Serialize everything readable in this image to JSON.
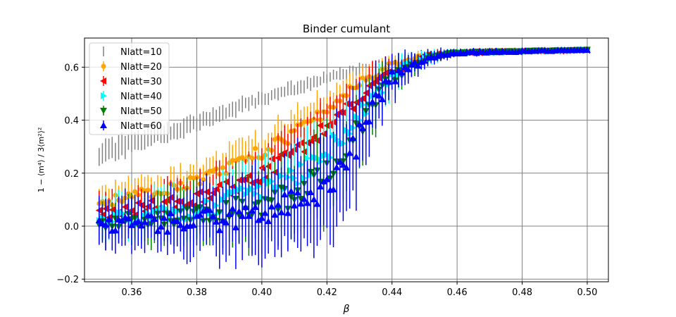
{
  "chart_data": {
    "type": "scatter",
    "title": "Binder cumulant",
    "xlabel": "β",
    "ylabel": "1 − ⟨m⁴⟩ / 3⟨m²⟩²",
    "xlim": [
      0.3455,
      0.5065
    ],
    "ylim": [
      -0.21,
      0.71
    ],
    "xticks": [
      0.36,
      0.38,
      0.4,
      0.42,
      0.44,
      0.46,
      0.48,
      0.5
    ],
    "xtick_labels": [
      "0.36",
      "0.38",
      "0.40",
      "0.42",
      "0.44",
      "0.46",
      "0.48",
      "0.50"
    ],
    "yticks": [
      -0.2,
      0.0,
      0.2,
      0.4,
      0.6
    ],
    "ytick_labels": [
      "−0.2",
      "0.0",
      "0.2",
      "0.4",
      "0.6"
    ],
    "grid": true,
    "legend_placement": "top-left",
    "beta_range": {
      "start": 0.35,
      "end": 0.5,
      "step": 0.001
    },
    "series": [
      {
        "name": "Nlatt=10",
        "color": "#808080",
        "marker": "none",
        "control_x": [
          0.35,
          0.36,
          0.38,
          0.4,
          0.42,
          0.43,
          0.44,
          0.45,
          0.46,
          0.5
        ],
        "control_y": [
          0.27,
          0.31,
          0.39,
          0.48,
          0.56,
          0.59,
          0.615,
          0.635,
          0.65,
          0.665
        ],
        "control_err": [
          0.04,
          0.035,
          0.03,
          0.025,
          0.02,
          0.018,
          0.015,
          0.01,
          0.006,
          0.004
        ]
      },
      {
        "name": "Nlatt=20",
        "color": "#ffa500",
        "marker": "circle",
        "control_x": [
          0.35,
          0.36,
          0.38,
          0.4,
          0.41,
          0.42,
          0.43,
          0.44,
          0.45,
          0.46,
          0.5
        ],
        "control_y": [
          0.09,
          0.11,
          0.17,
          0.28,
          0.35,
          0.44,
          0.54,
          0.61,
          0.645,
          0.655,
          0.665
        ],
        "control_err": [
          0.06,
          0.06,
          0.065,
          0.07,
          0.07,
          0.065,
          0.05,
          0.03,
          0.015,
          0.008,
          0.004
        ]
      },
      {
        "name": "Nlatt=30",
        "color": "#ff0000",
        "marker": "triangle-left",
        "control_x": [
          0.35,
          0.36,
          0.38,
          0.39,
          0.4,
          0.41,
          0.42,
          0.43,
          0.44,
          0.45,
          0.46,
          0.5
        ],
        "control_y": [
          0.05,
          0.06,
          0.1,
          0.14,
          0.2,
          0.28,
          0.37,
          0.49,
          0.58,
          0.64,
          0.655,
          0.665
        ],
        "control_err": [
          0.07,
          0.07,
          0.08,
          0.09,
          0.09,
          0.09,
          0.09,
          0.08,
          0.05,
          0.02,
          0.01,
          0.004
        ]
      },
      {
        "name": "Nlatt=40",
        "color": "#00ffff",
        "marker": "triangle-right",
        "control_x": [
          0.35,
          0.36,
          0.38,
          0.4,
          0.41,
          0.42,
          0.43,
          0.44,
          0.45,
          0.46,
          0.5
        ],
        "control_y": [
          0.02,
          0.03,
          0.06,
          0.13,
          0.19,
          0.28,
          0.42,
          0.57,
          0.635,
          0.655,
          0.665
        ],
        "control_err": [
          0.07,
          0.08,
          0.09,
          0.11,
          0.12,
          0.12,
          0.11,
          0.06,
          0.025,
          0.01,
          0.004
        ]
      },
      {
        "name": "Nlatt=50",
        "color": "#008000",
        "marker": "triangle-down",
        "control_x": [
          0.35,
          0.36,
          0.38,
          0.4,
          0.41,
          0.42,
          0.43,
          0.435,
          0.44,
          0.45,
          0.46,
          0.5
        ],
        "control_y": [
          0.01,
          0.02,
          0.04,
          0.08,
          0.12,
          0.21,
          0.37,
          0.49,
          0.56,
          0.63,
          0.655,
          0.665
        ],
        "control_err": [
          0.07,
          0.08,
          0.1,
          0.13,
          0.14,
          0.15,
          0.13,
          0.1,
          0.06,
          0.025,
          0.01,
          0.004
        ]
      },
      {
        "name": "Nlatt=60",
        "color": "#0000ff",
        "marker": "triangle-up",
        "control_x": [
          0.35,
          0.36,
          0.38,
          0.4,
          0.41,
          0.42,
          0.43,
          0.435,
          0.44,
          0.45,
          0.46,
          0.5
        ],
        "control_y": [
          0.01,
          0.01,
          0.02,
          0.04,
          0.08,
          0.16,
          0.33,
          0.47,
          0.56,
          0.63,
          0.655,
          0.665
        ],
        "control_err": [
          0.08,
          0.09,
          0.12,
          0.15,
          0.17,
          0.19,
          0.17,
          0.12,
          0.07,
          0.03,
          0.012,
          0.004
        ]
      }
    ]
  }
}
